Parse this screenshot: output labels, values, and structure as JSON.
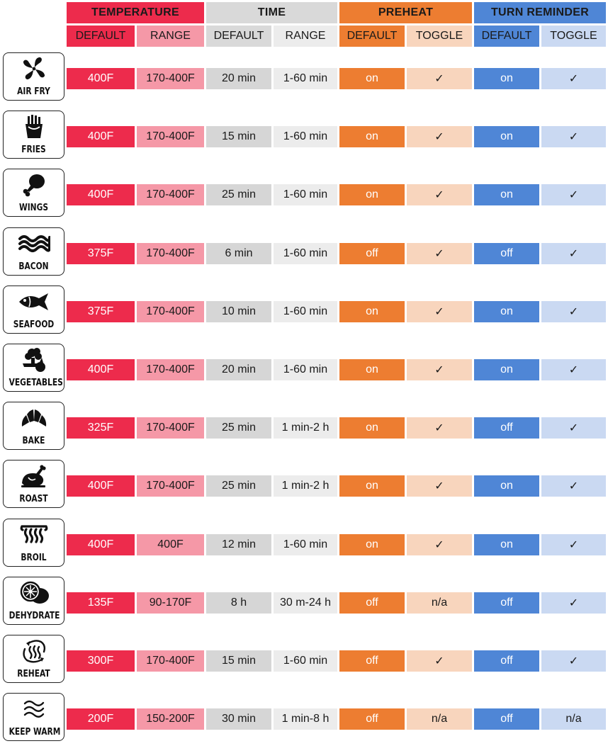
{
  "headers": {
    "groups": [
      {
        "key": "temperature",
        "label": "TEMPERATURE"
      },
      {
        "key": "time",
        "label": "TIME"
      },
      {
        "key": "preheat",
        "label": "PREHEAT"
      },
      {
        "key": "turn_reminder",
        "label": "TURN REMINDER"
      }
    ],
    "subheaders": [
      "DEFAULT",
      "RANGE",
      "DEFAULT",
      "RANGE",
      "DEFAULT",
      "TOGGLE",
      "DEFAULT",
      "TOGGLE"
    ]
  },
  "colors": {
    "temperature": "#ed2b4c",
    "temperature_light": "#f598a7",
    "time": "#d6d6d6",
    "time_light": "#ececec",
    "preheat": "#ed7d31",
    "preheat_light": "#f8d5bd",
    "turn_reminder": "#4f86d6",
    "turn_reminder_light": "#cad9f2"
  },
  "rows": [
    {
      "mode": "AIR FRY",
      "icon": "fan-icon",
      "temp_default": "400F",
      "temp_range": "170-400F",
      "time_default": "20 min",
      "time_range": "1-60 min",
      "preheat_default": "on",
      "preheat_toggle": "✓",
      "turn_default": "on",
      "turn_toggle": "✓"
    },
    {
      "mode": "FRIES",
      "icon": "fries-icon",
      "temp_default": "400F",
      "temp_range": "170-400F",
      "time_default": "15 min",
      "time_range": "1-60 min",
      "preheat_default": "on",
      "preheat_toggle": "✓",
      "turn_default": "on",
      "turn_toggle": "✓"
    },
    {
      "mode": "WINGS",
      "icon": "drumstick-icon",
      "temp_default": "400F",
      "temp_range": "170-400F",
      "time_default": "25 min",
      "time_range": "1-60 min",
      "preheat_default": "on",
      "preheat_toggle": "✓",
      "turn_default": "on",
      "turn_toggle": "✓"
    },
    {
      "mode": "BACON",
      "icon": "bacon-icon",
      "temp_default": "375F",
      "temp_range": "170-400F",
      "time_default": "6 min",
      "time_range": "1-60 min",
      "preheat_default": "off",
      "preheat_toggle": "✓",
      "turn_default": "off",
      "turn_toggle": "✓"
    },
    {
      "mode": "SEAFOOD",
      "icon": "fish-icon",
      "temp_default": "375F",
      "temp_range": "170-400F",
      "time_default": "10 min",
      "time_range": "1-60 min",
      "preheat_default": "on",
      "preheat_toggle": "✓",
      "turn_default": "on",
      "turn_toggle": "✓"
    },
    {
      "mode": "VEGETABLES",
      "icon": "vegetables-icon",
      "temp_default": "400F",
      "temp_range": "170-400F",
      "time_default": "20 min",
      "time_range": "1-60 min",
      "preheat_default": "on",
      "preheat_toggle": "✓",
      "turn_default": "on",
      "turn_toggle": "✓"
    },
    {
      "mode": "BAKE",
      "icon": "croissant-icon",
      "temp_default": "325F",
      "temp_range": "170-400F",
      "time_default": "25 min",
      "time_range": "1 min-2 h",
      "preheat_default": "on",
      "preheat_toggle": "✓",
      "turn_default": "off",
      "turn_toggle": "✓"
    },
    {
      "mode": "ROAST",
      "icon": "roast-chicken-icon",
      "temp_default": "400F",
      "temp_range": "170-400F",
      "time_default": "25 min",
      "time_range": "1 min-2 h",
      "preheat_default": "on",
      "preheat_toggle": "✓",
      "turn_default": "on",
      "turn_toggle": "✓"
    },
    {
      "mode": "BROIL",
      "icon": "broil-heater-icon",
      "temp_default": "400F",
      "temp_range": "400F",
      "time_default": "12 min",
      "time_range": "1-60 min",
      "preheat_default": "on",
      "preheat_toggle": "✓",
      "turn_default": "on",
      "turn_toggle": "✓"
    },
    {
      "mode": "DEHYDRATE",
      "icon": "citrus-slices-icon",
      "temp_default": "135F",
      "temp_range": "90-170F",
      "time_default": "8 h",
      "time_range": "30 m-24 h",
      "preheat_default": "off",
      "preheat_toggle": "n/a",
      "turn_default": "off",
      "turn_toggle": "✓"
    },
    {
      "mode": "REHEAT",
      "icon": "reheat-icon",
      "temp_default": "300F",
      "temp_range": "170-400F",
      "time_default": "15 min",
      "time_range": "1-60 min",
      "preheat_default": "off",
      "preheat_toggle": "✓",
      "turn_default": "off",
      "turn_toggle": "✓"
    },
    {
      "mode": "KEEP WARM",
      "icon": "keep-warm-waves-icon",
      "temp_default": "200F",
      "temp_range": "150-200F",
      "time_default": "30 min",
      "time_range": "1 min-8 h",
      "preheat_default": "off",
      "preheat_toggle": "n/a",
      "turn_default": "off",
      "turn_toggle": "n/a"
    }
  ]
}
